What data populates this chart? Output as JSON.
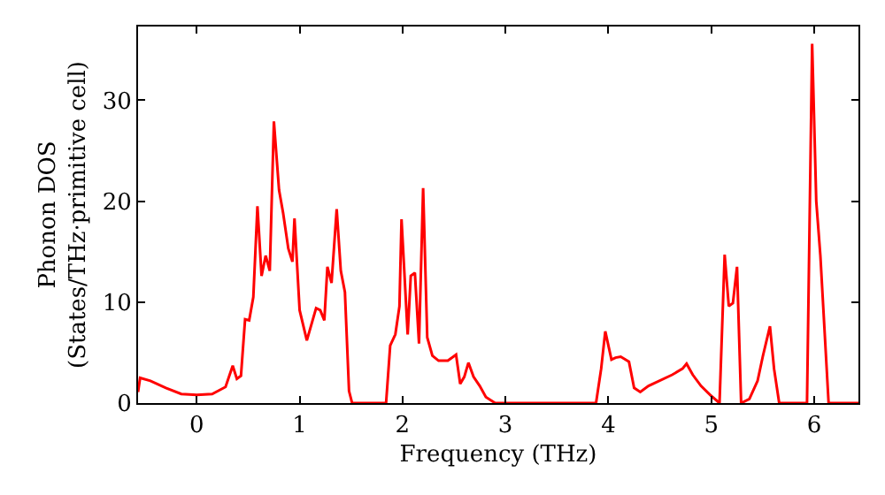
{
  "chart_data": {
    "type": "line",
    "xlabel": "Frequency (THz)",
    "ylabel": "Phonon DOS\n(States/THz·primitive cell)",
    "xlim": [
      -0.57,
      6.43
    ],
    "ylim": [
      0,
      37.3
    ],
    "xticks": [
      0,
      1,
      2,
      3,
      4,
      5,
      6
    ],
    "yticks": [
      0,
      10,
      20,
      30
    ],
    "marker": "none",
    "line_style": "solid",
    "x": [
      -0.57,
      -0.55,
      -0.45,
      -0.3,
      -0.15,
      0,
      0.15,
      0.28,
      0.35,
      0.39,
      0.43,
      0.47,
      0.51,
      0.55,
      0.59,
      0.63,
      0.67,
      0.71,
      0.75,
      0.8,
      0.84,
      0.89,
      0.93,
      0.95,
      1.0,
      1.07,
      1.16,
      1.2,
      1.24,
      1.27,
      1.31,
      1.36,
      1.4,
      1.44,
      1.48,
      1.51,
      1.84,
      1.88,
      1.93,
      1.97,
      1.99,
      2.05,
      2.08,
      2.12,
      2.16,
      2.2,
      2.24,
      2.29,
      2.35,
      2.44,
      2.52,
      2.56,
      2.6,
      2.64,
      2.69,
      2.75,
      2.81,
      2.9,
      3.88,
      3.93,
      3.97,
      4.03,
      4.07,
      4.12,
      4.2,
      4.25,
      4.31,
      4.39,
      4.62,
      4.72,
      4.76,
      4.82,
      4.9,
      4.99,
      5.08,
      5.13,
      5.17,
      5.21,
      5.25,
      5.29,
      5.37,
      5.45,
      5.5,
      5.57,
      5.61,
      5.66,
      5.93,
      5.98,
      6.02,
      6.06,
      6.14,
      6.43
    ],
    "series": [
      {
        "color": "#ff0000",
        "values": [
          1.1,
          2.5,
          2.2,
          1.5,
          0.9,
          0.8,
          0.9,
          1.6,
          3.7,
          2.4,
          2.7,
          8.3,
          8.2,
          10.5,
          19.5,
          12.6,
          14.6,
          13.1,
          27.9,
          21.1,
          18.8,
          15.3,
          14.0,
          18.3,
          9.2,
          6.2,
          9.4,
          9.2,
          8.2,
          13.5,
          11.9,
          19.2,
          13.1,
          11.0,
          1.2,
          0,
          0,
          5.7,
          6.8,
          9.6,
          18.2,
          6.8,
          12.6,
          12.9,
          5.9,
          21.3,
          6.5,
          4.7,
          4.2,
          4.2,
          4.8,
          1.9,
          2.6,
          4.0,
          2.6,
          1.7,
          0.6,
          0,
          0,
          3.4,
          7.1,
          4.3,
          4.5,
          4.6,
          4.1,
          1.5,
          1.1,
          1.7,
          2.8,
          3.4,
          3.9,
          2.8,
          1.7,
          0.8,
          0,
          14.7,
          9.6,
          9.9,
          13.5,
          0,
          0.4,
          2.2,
          4.6,
          7.6,
          3.4,
          0,
          0,
          35.6,
          20.0,
          14.6,
          0,
          0
        ]
      }
    ]
  }
}
